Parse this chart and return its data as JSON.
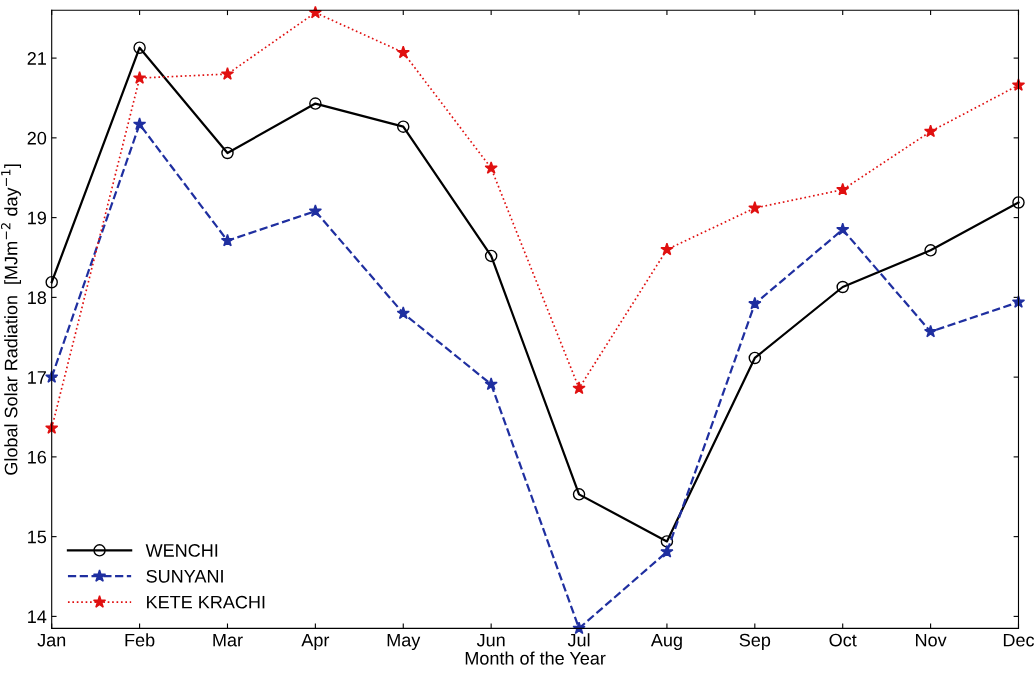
{
  "chart_data": {
    "type": "line",
    "xlabel": "Month of the Year",
    "ylabel": "Global Solar Radiation  [MJm$^{−2}$ day$^{−1}$]",
    "categories": [
      "Jan",
      "Feb",
      "Mar",
      "Apr",
      "May",
      "Jun",
      "Jul",
      "Aug",
      "Sep",
      "Oct",
      "Nov",
      "Dec"
    ],
    "series": [
      {
        "name": "WENCHI",
        "color": "#000000",
        "marker": "circle",
        "line_style": "solid",
        "values": [
          18.19,
          21.13,
          19.81,
          20.43,
          20.14,
          18.52,
          15.53,
          14.94,
          17.24,
          18.13,
          18.59,
          19.19
        ]
      },
      {
        "name": "SUNYANI",
        "color": "#1f2fa0",
        "marker": "star",
        "line_style": "dashed",
        "values": [
          17.0,
          20.17,
          18.71,
          19.08,
          17.8,
          16.91,
          13.85,
          14.81,
          17.92,
          18.85,
          17.57,
          17.94
        ]
      },
      {
        "name": "KETE KRACHI",
        "color": "#e01010",
        "marker": "star",
        "line_style": "dotted",
        "values": [
          16.36,
          20.75,
          20.8,
          21.57,
          21.07,
          19.62,
          16.86,
          18.6,
          19.12,
          19.35,
          20.08,
          20.66
        ]
      }
    ],
    "ylim": [
      13.85,
      21.6
    ],
    "yticks": [
      14,
      15,
      16,
      17,
      18,
      19,
      20,
      21
    ],
    "grid": false,
    "legend": "bottom left"
  }
}
